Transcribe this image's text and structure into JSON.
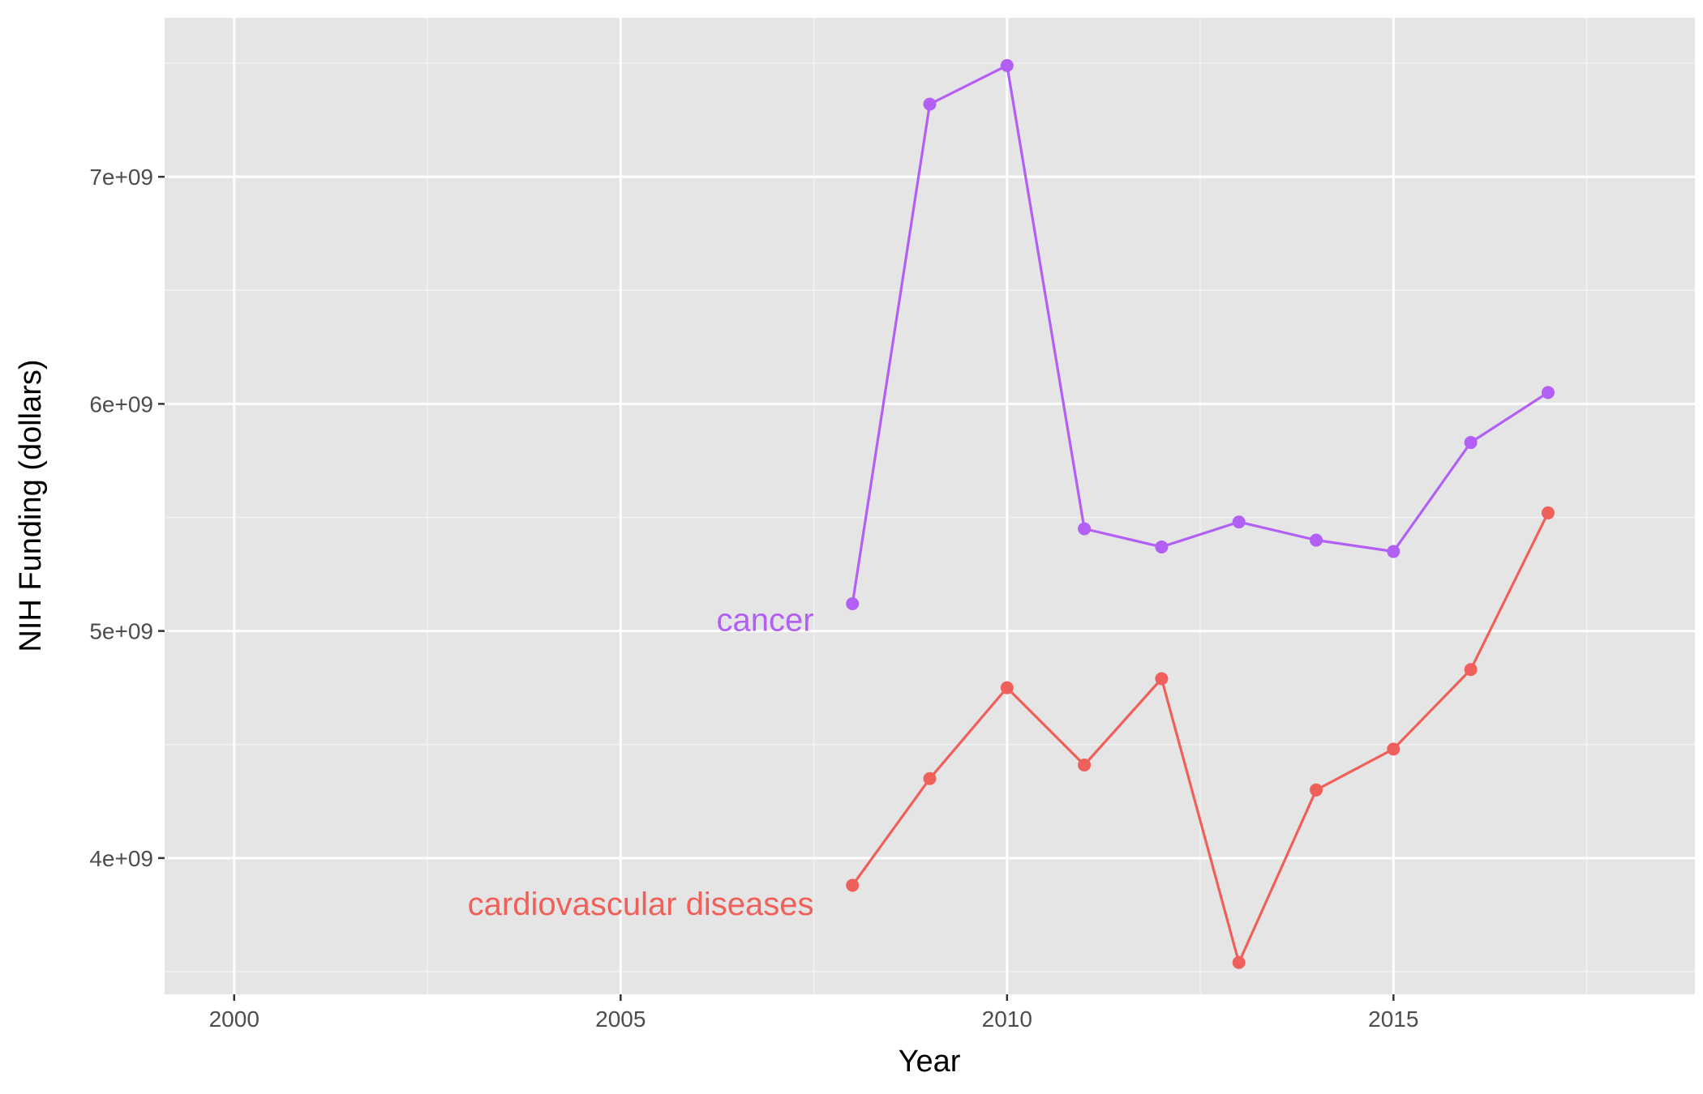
{
  "chart_data": {
    "type": "line",
    "xlabel": "Year",
    "ylabel": "NIH Funding (dollars)",
    "xlim": [
      1999.1,
      2018.9
    ],
    "ylim": [
      3400000000,
      7700000000
    ],
    "x_ticks": [
      2000,
      2005,
      2010,
      2015
    ],
    "x_tick_labels": [
      "2000",
      "2005",
      "2010",
      "2015"
    ],
    "y_ticks": [
      4000000000,
      5000000000,
      6000000000,
      7000000000
    ],
    "y_tick_labels": [
      "4e+09",
      "5e+09",
      "6e+09",
      "7e+09"
    ],
    "grid": true,
    "legend": "none",
    "x": [
      2008,
      2009,
      2010,
      2011,
      2012,
      2013,
      2014,
      2015,
      2016,
      2017
    ],
    "series": [
      {
        "name": "cancer",
        "color": "#B15FF5",
        "label_position": [
          2007.5,
          5050000000
        ],
        "values": [
          5120000000,
          7320000000,
          7490000000,
          5450000000,
          5370000000,
          5480000000,
          5400000000,
          5350000000,
          5830000000,
          6050000000
        ]
      },
      {
        "name": "cardiovascular diseases",
        "color": "#F0605A",
        "label_position": [
          2007.5,
          3800000000
        ],
        "values": [
          3880000000,
          4350000000,
          4750000000,
          4410000000,
          4790000000,
          3540000000,
          4300000000,
          4480000000,
          4830000000,
          5520000000
        ]
      }
    ]
  }
}
